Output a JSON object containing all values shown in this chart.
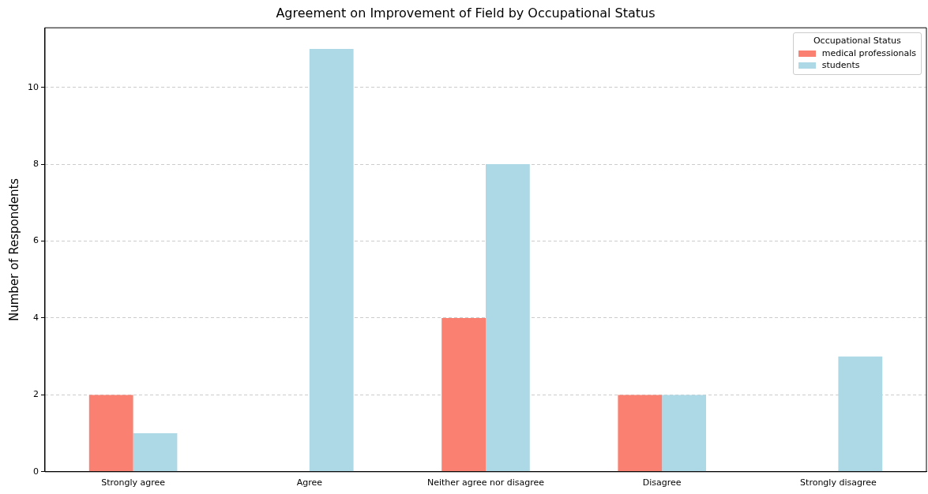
{
  "chart_data": {
    "type": "bar",
    "title": "Agreement on Improvement of Field by Occupational Status",
    "ylabel": "Number of Respondents",
    "legend_title": "Occupational Status",
    "categories": [
      "Strongly agree",
      "Agree",
      "Neither agree nor disagree",
      "Disagree",
      "Strongly disagree"
    ],
    "series": [
      {
        "name": "medical professionals",
        "color": "#fa8072",
        "values": [
          2,
          0,
          4,
          2,
          0
        ]
      },
      {
        "name": "students",
        "color": "#add8e6",
        "values": [
          1,
          11,
          8,
          2,
          3
        ]
      }
    ],
    "ylim": [
      0,
      11.55
    ],
    "yticks": [
      0,
      2,
      4,
      6,
      8,
      10
    ],
    "grid": "y",
    "legend": "top right"
  }
}
